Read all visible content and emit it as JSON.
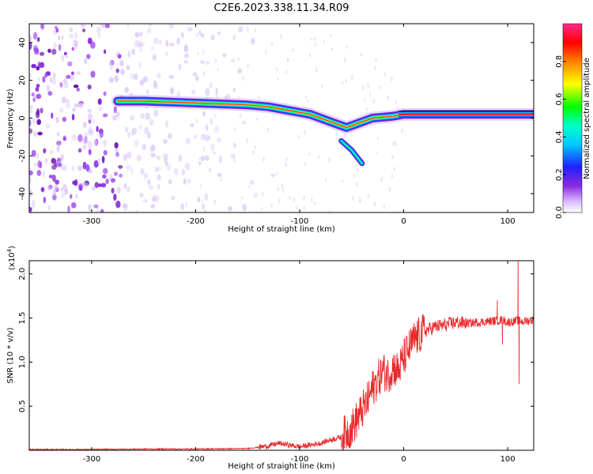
{
  "title": "C2E6.2023.338.11.34.R09",
  "colors": {
    "snr_line": "#e8292b",
    "frame": "#000000"
  },
  "chart_data": [
    {
      "type": "heatmap",
      "title": "C2E6.2023.338.11.34.R09",
      "xlabel": "Height of straight line (km)",
      "ylabel": "Frequency (Hz)",
      "xlim": [
        -360,
        125
      ],
      "ylim": [
        -50,
        50
      ],
      "xticks": [
        -300,
        -200,
        -100,
        0,
        100
      ],
      "yticks": [
        -40,
        -20,
        0,
        20,
        40
      ],
      "colorbar": {
        "label": "Normalized spectral amplitude",
        "range": [
          0.0,
          1.0
        ],
        "ticks": [
          "0.0",
          "0.2",
          "0.4",
          "0.6",
          "0.8"
        ],
        "colormap": "rainbow (white-violet-blue-cyan-green-yellow-red-magenta)"
      },
      "ridge": {
        "description": "Dominant frequency trace",
        "points": [
          {
            "x": -275,
            "y": 9
          },
          {
            "x": -250,
            "y": 9
          },
          {
            "x": -200,
            "y": 8
          },
          {
            "x": -150,
            "y": 7
          },
          {
            "x": -130,
            "y": 6
          },
          {
            "x": -110,
            "y": 4
          },
          {
            "x": -90,
            "y": 2
          },
          {
            "x": -70,
            "y": -2
          },
          {
            "x": -55,
            "y": -5
          },
          {
            "x": -45,
            "y": -3
          },
          {
            "x": -30,
            "y": 0
          },
          {
            "x": -10,
            "y": 1
          },
          {
            "x": 0,
            "y": 2
          },
          {
            "x": 50,
            "y": 2
          },
          {
            "x": 100,
            "y": 2
          },
          {
            "x": 125,
            "y": 2
          }
        ],
        "secondary_branch": [
          {
            "x": -60,
            "y": -12
          },
          {
            "x": -50,
            "y": -17
          },
          {
            "x": -40,
            "y": -24
          }
        ]
      },
      "noise_region": {
        "x_from": -360,
        "x_to": -160,
        "note": "scattered broadband noise"
      }
    },
    {
      "type": "line",
      "xlabel": "Height of straight line (km)",
      "ylabel": "SNR (10 * v/v)",
      "y_multiplier": "(x10^4)",
      "xlim": [
        -360,
        125
      ],
      "ylim": [
        0,
        2.15
      ],
      "xticks": [
        -300,
        -200,
        -100,
        0,
        100
      ],
      "yticks": [
        0.5,
        1.0,
        1.5,
        2.0
      ],
      "series": [
        {
          "x": [
            -360,
            -300,
            -250,
            -200,
            -150,
            -130,
            -120,
            -110,
            -100,
            -90,
            -80,
            -70,
            -60,
            -50,
            -45,
            -40,
            -35,
            -30,
            -25,
            -20,
            -15,
            -10,
            -5,
            0,
            5,
            10,
            15,
            20,
            30,
            40,
            50,
            60,
            70,
            80,
            90,
            95,
            100,
            105,
            110,
            115,
            120,
            125
          ],
          "values": [
            0.01,
            0.01,
            0.015,
            0.015,
            0.02,
            0.05,
            0.08,
            0.06,
            0.04,
            0.06,
            0.08,
            0.12,
            0.15,
            0.25,
            0.35,
            0.45,
            0.55,
            0.7,
            0.8,
            0.9,
            0.85,
            0.95,
            0.9,
            1.05,
            1.15,
            1.25,
            1.3,
            1.35,
            1.4,
            1.42,
            1.45,
            1.44,
            1.45,
            1.46,
            1.47,
            1.48,
            1.45,
            1.46,
            1.47,
            1.46,
            1.47,
            1.48
          ]
        }
      ],
      "spikes": [
        {
          "x": 90,
          "value": 1.7
        },
        {
          "x": 95,
          "value": 1.2
        },
        {
          "x": 110,
          "value": 2.15
        },
        {
          "x": 111,
          "value": 0.75
        }
      ]
    }
  ]
}
